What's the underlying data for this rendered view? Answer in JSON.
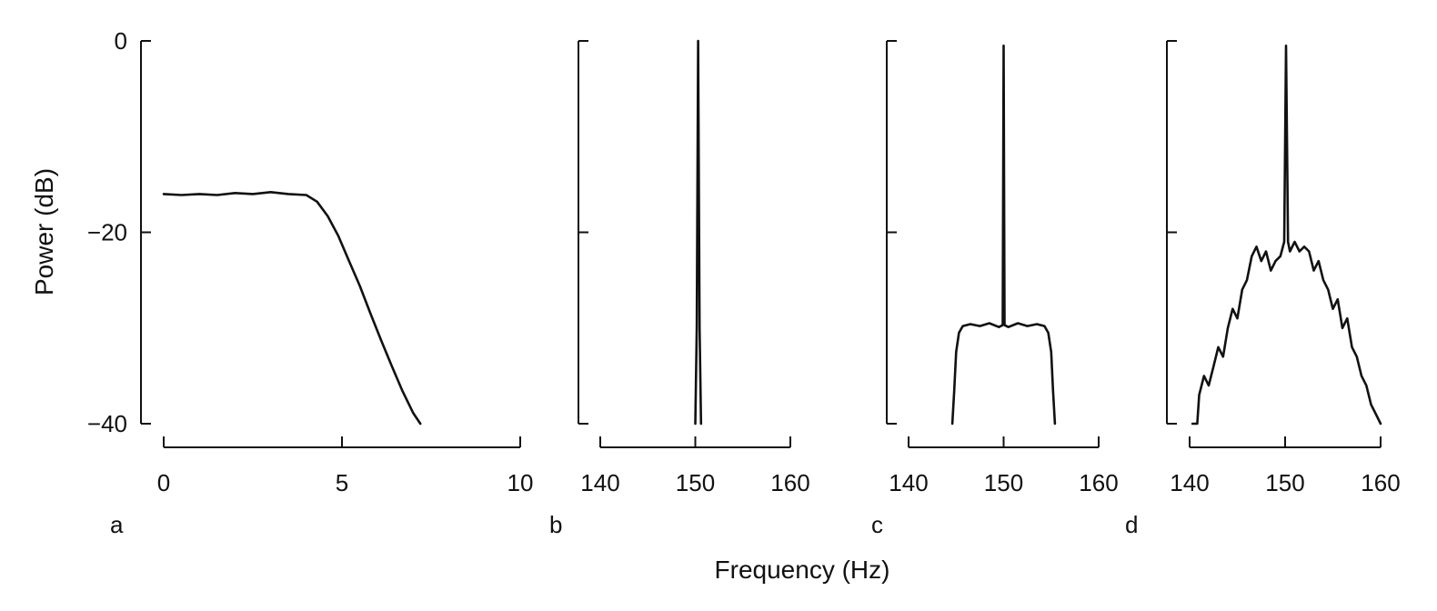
{
  "chart_data": {
    "type": "line",
    "shared_y": {
      "label": "Power (dB)",
      "range": [
        -40,
        0
      ],
      "ticks": [
        0,
        -20,
        -40
      ],
      "tick_labels": [
        "0",
        "−20",
        "−40"
      ]
    },
    "shared_x_label": "Frequency (Hz)",
    "grid": false,
    "panels": [
      {
        "id": "a",
        "label": "a",
        "xlim": [
          0,
          10
        ],
        "xticks": [
          0,
          5,
          10
        ],
        "xtick_labels": [
          "0",
          "5",
          "10"
        ],
        "series": [
          {
            "x": [
              0,
              0.5,
              1,
              1.5,
              2,
              2.5,
              3,
              3.5,
              4,
              4.3,
              4.6,
              4.9,
              5.2,
              5.5,
              5.8,
              6.1,
              6.4,
              6.7,
              7.0,
              7.2
            ],
            "y": [
              -16,
              -16.1,
              -16,
              -16.1,
              -15.9,
              -16,
              -15.8,
              -16,
              -16.1,
              -16.8,
              -18.3,
              -20.4,
              -23,
              -25.6,
              -28.5,
              -31.3,
              -34,
              -36.6,
              -38.9,
              -40
            ]
          }
        ]
      },
      {
        "id": "b",
        "label": "b",
        "xlim": [
          140,
          160
        ],
        "xticks": [
          140,
          150,
          160
        ],
        "xtick_labels": [
          "140",
          "150",
          "160"
        ],
        "series": [
          {
            "x": [
              150.0,
              150.15,
              150.3,
              150.45,
              150.6
            ],
            "y": [
              -40,
              -30,
              0,
              -30,
              -40
            ]
          }
        ]
      },
      {
        "id": "c",
        "label": "c",
        "xlim": [
          140,
          160
        ],
        "xticks": [
          140,
          150,
          160
        ],
        "xtick_labels": [
          "140",
          "150",
          "160"
        ],
        "series": [
          {
            "x": [
              144.6,
              144.8,
              145.0,
              145.3,
              145.7,
              146.5,
              147.5,
              148.5,
              149.5,
              149.9,
              150.0,
              150.1,
              150.5,
              151.5,
              152.5,
              153.5,
              154.3,
              154.7,
              155.0,
              155.2,
              155.4
            ],
            "y": [
              -40,
              -36.5,
              -32.5,
              -30.5,
              -29.8,
              -29.6,
              -29.8,
              -29.5,
              -29.9,
              -29.7,
              -0.5,
              -29.7,
              -29.9,
              -29.5,
              -29.8,
              -29.6,
              -29.8,
              -30.5,
              -32.5,
              -36.5,
              -40
            ]
          }
        ]
      },
      {
        "id": "d",
        "label": "d",
        "xlim": [
          140,
          160
        ],
        "xticks": [
          140,
          150,
          160
        ],
        "xtick_labels": [
          "140",
          "150",
          "160"
        ],
        "series": [
          {
            "x": [
              140.3,
              140.8,
              141.0,
              141.5,
              142.0,
              142.5,
              143.0,
              143.5,
              144.0,
              144.5,
              145.0,
              145.5,
              146.0,
              146.5,
              147.0,
              147.5,
              148.0,
              148.5,
              149.0,
              149.5,
              149.9,
              150.1,
              150.3,
              150.5,
              151.0,
              151.5,
              152.0,
              152.5,
              153.0,
              153.5,
              154.0,
              154.5,
              155.0,
              155.5,
              156.0,
              156.5,
              157.0,
              157.5,
              158.0,
              158.5,
              159.0,
              159.5,
              160.0
            ],
            "y": [
              -40,
              -40,
              -37,
              -35,
              -36,
              -34,
              -32,
              -33,
              -30,
              -28,
              -29,
              -26,
              -25,
              -22.5,
              -21.5,
              -23,
              -22,
              -24,
              -23,
              -22.5,
              -21,
              -0.5,
              -21,
              -22,
              -21,
              -22,
              -21.5,
              -22,
              -24,
              -23,
              -25,
              -26,
              -28,
              -27,
              -30,
              -29,
              -32,
              -33,
              -35,
              -36,
              -38,
              -39,
              -40
            ]
          }
        ]
      }
    ]
  }
}
